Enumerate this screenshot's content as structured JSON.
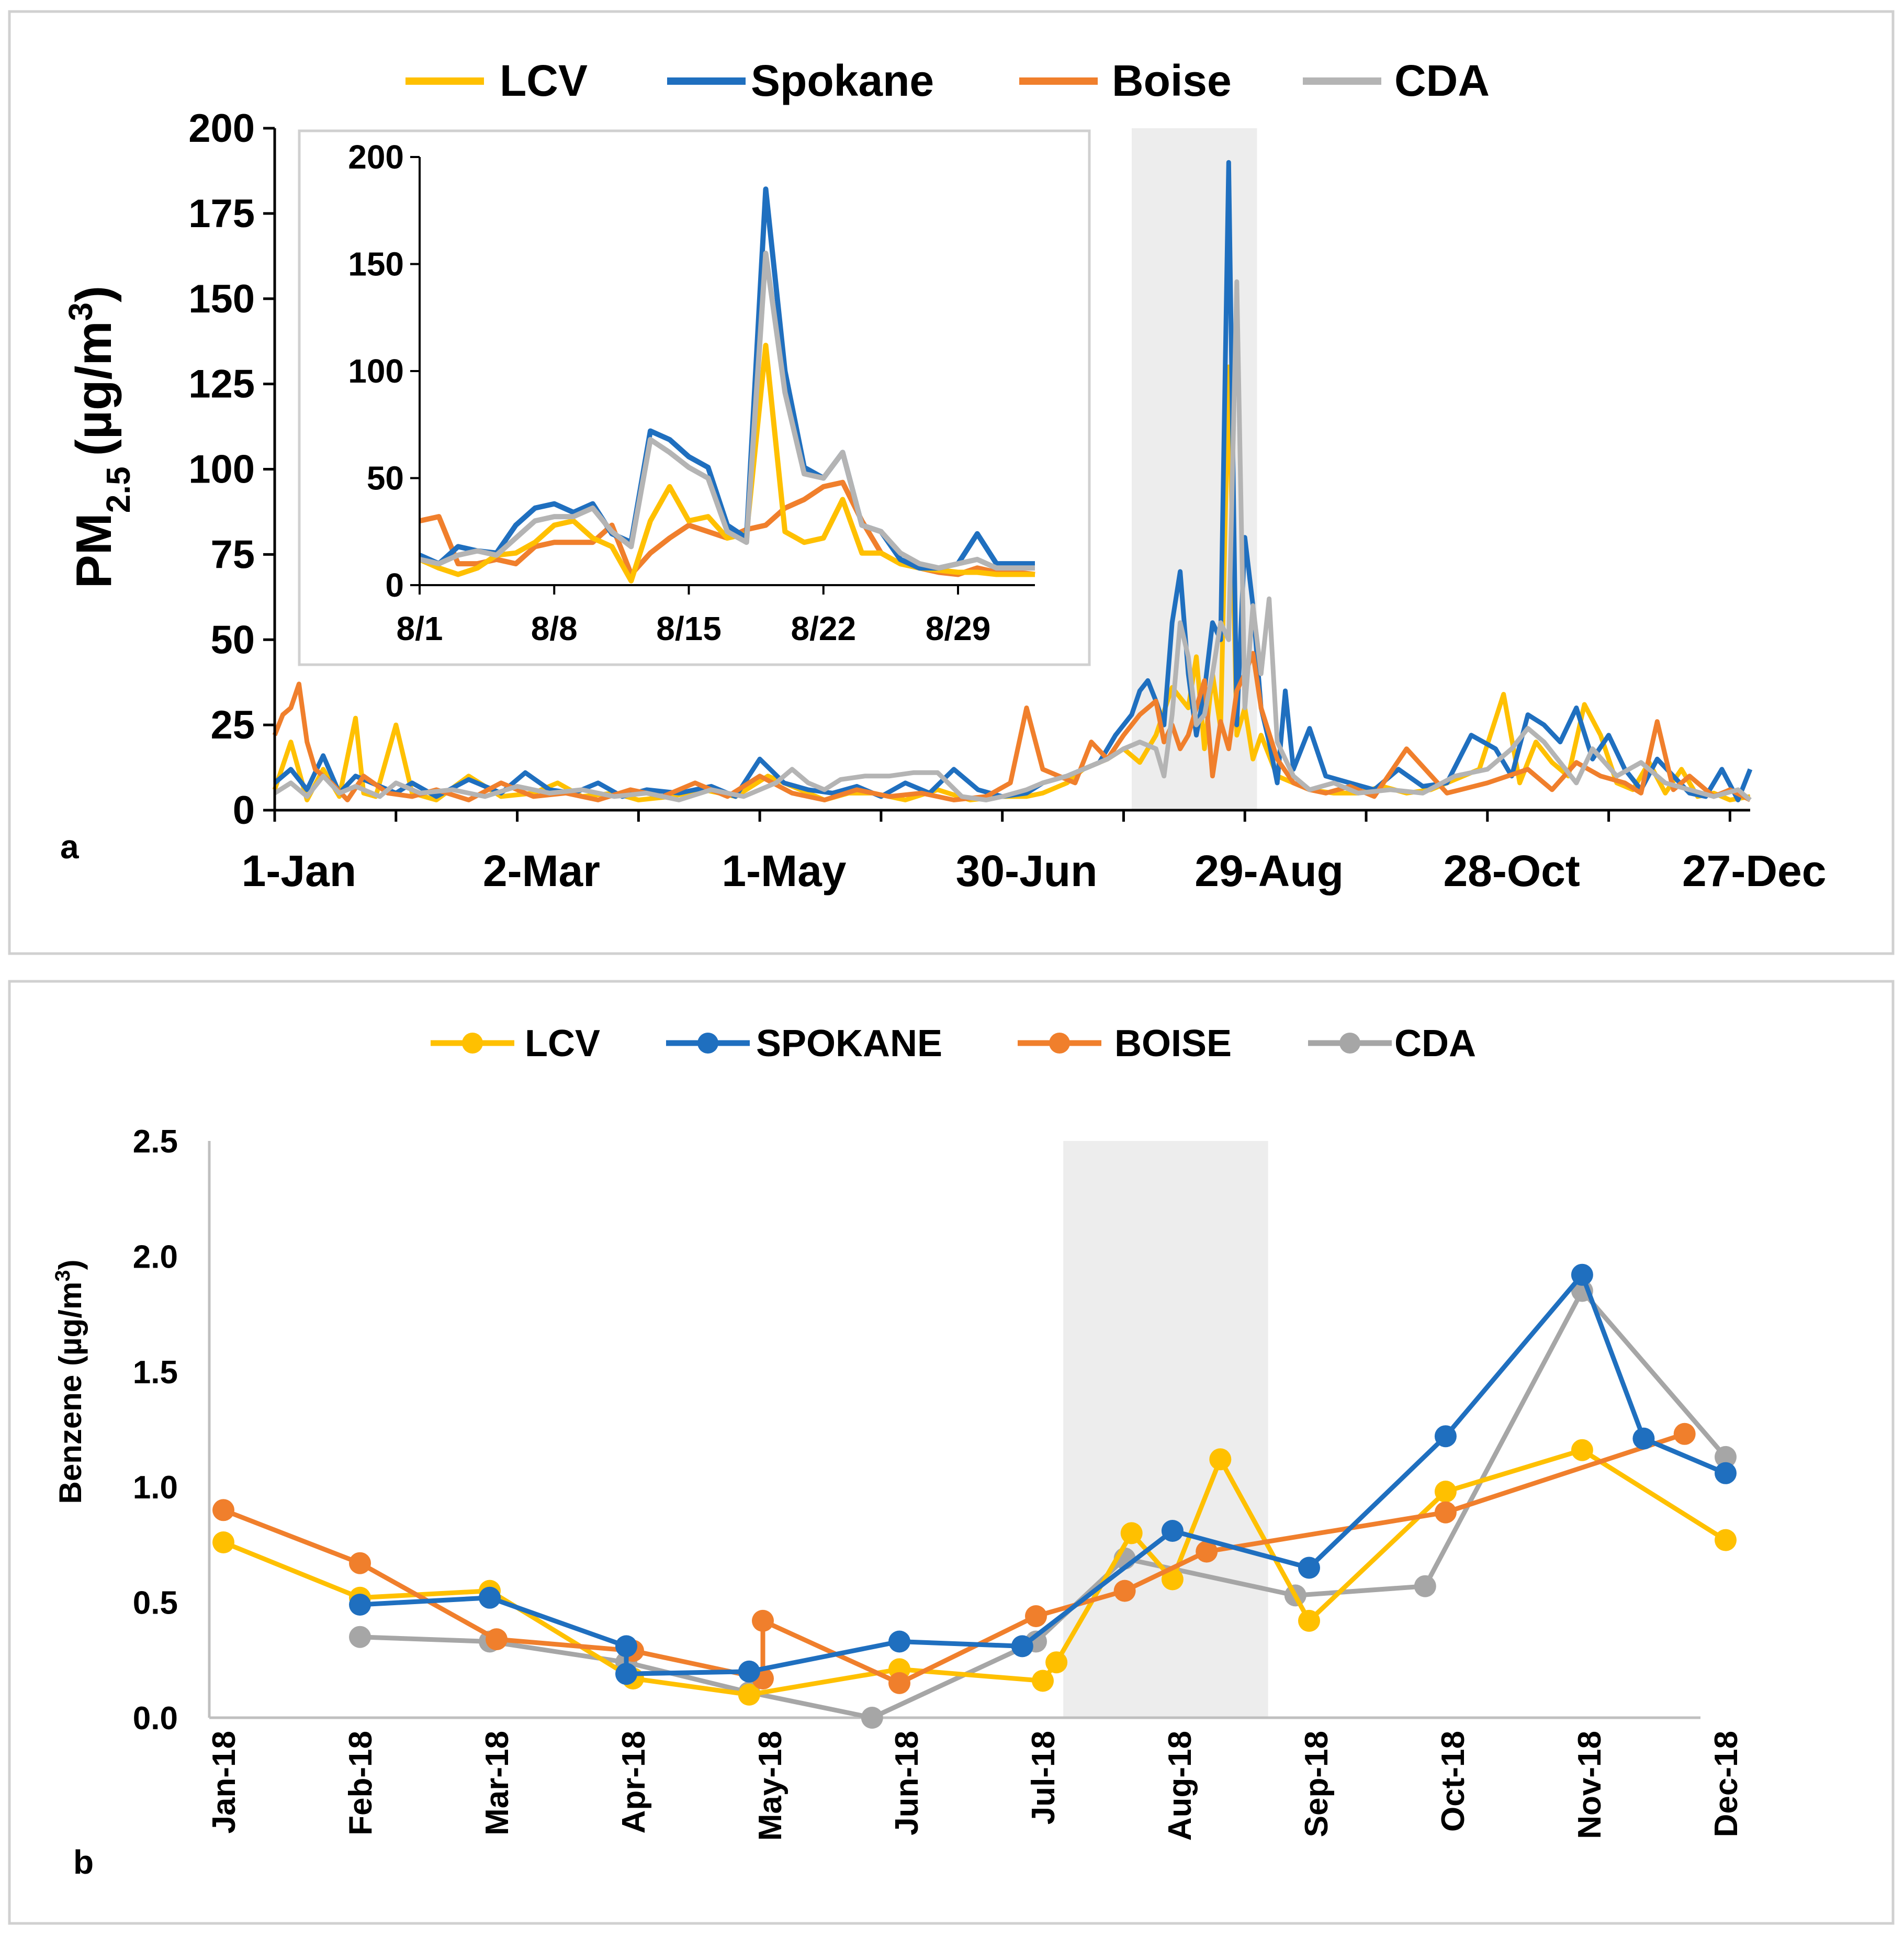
{
  "colors": {
    "lcv": "#FFC000",
    "spokane": "#1F6FBF",
    "boise": "#F07F2C",
    "cda": "#B4B4B4",
    "highlight": "#EDEDED",
    "frame": "#D0D0D0",
    "axis": "#000000"
  },
  "panel_a": {
    "label": "a",
    "ylabel_main": "PM",
    "ylabel_sub": "2.5",
    "ylabel_unit": "(µg/m",
    "ylabel_sup": "3",
    "ylabel_close": ")",
    "legend": [
      "LCV",
      "Spokane",
      "Boise",
      "CDA"
    ],
    "inset_ticks_y": [
      "0",
      "50",
      "100",
      "150",
      "200"
    ],
    "inset_ticks_x": [
      "8/1",
      "8/8",
      "8/15",
      "8/22",
      "8/29"
    ]
  },
  "panel_b": {
    "label": "b",
    "ylabel_main": "Benzene (µg/m",
    "ylabel_sup": "3",
    "ylabel_close": ")",
    "legend": [
      "LCV",
      "SPOKANE",
      "BOISE",
      "CDA"
    ]
  },
  "chart_data": [
    {
      "type": "line",
      "title": "",
      "xlabel": "",
      "ylabel": "PM2.5 (µg/m3)",
      "ylim": [
        0,
        200
      ],
      "yticks": [
        "0",
        "25",
        "50",
        "75",
        "100",
        "125",
        "150",
        "175",
        "200"
      ],
      "xlim_day": [
        0,
        365
      ],
      "x_tick_days": [
        6,
        66,
        126,
        186,
        246,
        306,
        366
      ],
      "xticks": [
        "1-Jan",
        "2-Mar",
        "1-May",
        "30-Jun",
        "29-Aug",
        "28-Oct",
        "27-Dec"
      ],
      "highlight_days": [
        212,
        243
      ],
      "series": [
        {
          "name": "LCV",
          "x": [
            0,
            4,
            8,
            12,
            16,
            20,
            22,
            25,
            30,
            34,
            40,
            48,
            56,
            64,
            70,
            76,
            84,
            90,
            98,
            106,
            114,
            122,
            130,
            136,
            142,
            148,
            156,
            164,
            172,
            180,
            186,
            190,
            196,
            200,
            206,
            210,
            214,
            218,
            222,
            226,
            228,
            230,
            232,
            234,
            236,
            238,
            240,
            242,
            244,
            248,
            252,
            256,
            262,
            268,
            274,
            280,
            286,
            292,
            298,
            304,
            308,
            312,
            316,
            320,
            324,
            328,
            332,
            336,
            340,
            344,
            348,
            352,
            356,
            360,
            365
          ],
          "y": [
            6,
            20,
            3,
            12,
            4,
            27,
            5,
            4,
            25,
            5,
            3,
            10,
            4,
            5,
            8,
            4,
            5,
            3,
            4,
            6,
            4,
            10,
            6,
            3,
            5,
            5,
            3,
            6,
            3,
            4,
            4,
            5,
            8,
            12,
            15,
            18,
            14,
            22,
            36,
            30,
            45,
            18,
            40,
            24,
            130,
            22,
            30,
            15,
            22,
            10,
            8,
            6,
            5,
            5,
            7,
            5,
            6,
            9,
            12,
            34,
            8,
            20,
            14,
            10,
            31,
            22,
            8,
            6,
            14,
            5,
            12,
            4,
            5,
            3,
            4
          ]
        },
        {
          "name": "Spokane",
          "x": [
            0,
            4,
            8,
            12,
            16,
            20,
            26,
            30,
            34,
            40,
            48,
            56,
            62,
            68,
            74,
            80,
            86,
            92,
            100,
            108,
            114,
            120,
            126,
            132,
            138,
            144,
            150,
            156,
            162,
            168,
            174,
            180,
            186,
            190,
            196,
            200,
            204,
            208,
            212,
            214,
            216,
            218,
            220,
            222,
            224,
            226,
            228,
            230,
            232,
            234,
            236,
            238,
            240,
            242,
            244,
            246,
            248,
            250,
            252,
            256,
            260,
            266,
            272,
            278,
            284,
            290,
            296,
            302,
            306,
            310,
            314,
            318,
            322,
            326,
            330,
            334,
            338,
            342,
            346,
            350,
            354,
            358,
            362,
            365
          ],
          "y": [
            8,
            12,
            6,
            16,
            5,
            10,
            7,
            5,
            8,
            4,
            9,
            5,
            11,
            6,
            5,
            8,
            4,
            6,
            5,
            7,
            4,
            15,
            8,
            6,
            5,
            7,
            4,
            8,
            5,
            12,
            6,
            4,
            5,
            8,
            10,
            12,
            14,
            22,
            28,
            35,
            38,
            32,
            25,
            55,
            70,
            40,
            22,
            35,
            55,
            50,
            190,
            25,
            80,
            60,
            30,
            20,
            8,
            35,
            12,
            24,
            10,
            8,
            6,
            12,
            7,
            8,
            22,
            18,
            10,
            28,
            25,
            20,
            30,
            15,
            22,
            12,
            6,
            15,
            10,
            5,
            4,
            12,
            3,
            12
          ]
        },
        {
          "name": "Boise",
          "x": [
            0,
            2,
            4,
            6,
            8,
            10,
            14,
            18,
            22,
            28,
            34,
            40,
            48,
            56,
            64,
            72,
            80,
            88,
            96,
            104,
            112,
            120,
            128,
            136,
            144,
            152,
            160,
            168,
            176,
            182,
            186,
            190,
            194,
            198,
            202,
            206,
            210,
            214,
            218,
            220,
            222,
            224,
            226,
            228,
            230,
            232,
            234,
            236,
            238,
            240,
            242,
            244,
            248,
            252,
            256,
            260,
            266,
            272,
            280,
            290,
            300,
            310,
            316,
            322,
            328,
            334,
            338,
            342,
            346,
            350,
            356,
            360,
            365
          ],
          "y": [
            22,
            28,
            30,
            37,
            20,
            12,
            8,
            3,
            10,
            5,
            4,
            6,
            3,
            8,
            4,
            5,
            3,
            6,
            4,
            8,
            4,
            10,
            5,
            3,
            6,
            4,
            5,
            3,
            4,
            8,
            30,
            12,
            10,
            8,
            20,
            15,
            22,
            28,
            32,
            20,
            25,
            18,
            22,
            30,
            38,
            10,
            26,
            18,
            35,
            40,
            46,
            30,
            15,
            8,
            6,
            5,
            7,
            4,
            18,
            5,
            8,
            12,
            6,
            14,
            10,
            8,
            5,
            26,
            6,
            10,
            4,
            6,
            3
          ]
        },
        {
          "name": "CDA",
          "x": [
            0,
            4,
            8,
            12,
            16,
            20,
            26,
            30,
            36,
            44,
            52,
            60,
            68,
            76,
            84,
            92,
            100,
            108,
            116,
            124,
            128,
            132,
            136,
            140,
            146,
            152,
            158,
            164,
            170,
            176,
            180,
            186,
            190,
            196,
            200,
            206,
            210,
            214,
            218,
            220,
            222,
            224,
            226,
            228,
            230,
            232,
            234,
            236,
            238,
            240,
            242,
            244,
            246,
            248,
            252,
            256,
            262,
            268,
            276,
            284,
            292,
            300,
            306,
            310,
            314,
            318,
            322,
            326,
            332,
            338,
            344,
            350,
            356,
            362,
            365
          ],
          "y": [
            5,
            8,
            4,
            10,
            5,
            7,
            4,
            8,
            5,
            6,
            4,
            7,
            5,
            6,
            4,
            5,
            3,
            6,
            4,
            8,
            12,
            8,
            6,
            9,
            10,
            10,
            11,
            11,
            4,
            3,
            4,
            6,
            8,
            10,
            12,
            15,
            18,
            20,
            18,
            10,
            28,
            55,
            45,
            25,
            28,
            40,
            55,
            50,
            155,
            30,
            60,
            40,
            62,
            20,
            10,
            6,
            8,
            5,
            6,
            5,
            10,
            12,
            18,
            24,
            20,
            14,
            8,
            18,
            10,
            14,
            8,
            6,
            4,
            6,
            3
          ]
        }
      ]
    },
    {
      "type": "line",
      "title": "inset",
      "xlabel": "",
      "ylabel": "",
      "ylim": [
        0,
        200
      ],
      "xlim": [
        1,
        33
      ],
      "yticks": [
        0,
        50,
        100,
        150,
        200
      ],
      "xticks": [
        "8/1",
        "8/8",
        "8/15",
        "8/22",
        "8/29"
      ],
      "xtick_values": [
        1,
        8,
        15,
        22,
        29
      ],
      "series": [
        {
          "name": "LCV",
          "x": [
            1,
            2,
            3,
            4,
            5,
            6,
            7,
            8,
            9,
            10,
            11,
            12,
            13,
            14,
            15,
            16,
            17,
            18,
            19,
            20,
            21,
            22,
            23,
            24,
            25,
            26,
            27,
            28,
            29,
            30,
            31,
            32,
            33
          ],
          "y": [
            12,
            8,
            5,
            8,
            14,
            15,
            20,
            28,
            30,
            22,
            18,
            2,
            30,
            46,
            30,
            32,
            22,
            24,
            112,
            25,
            20,
            22,
            40,
            15,
            15,
            10,
            8,
            7,
            6,
            6,
            5,
            5,
            5
          ]
        },
        {
          "name": "Spokane",
          "x": [
            1,
            2,
            3,
            4,
            5,
            6,
            7,
            8,
            9,
            10,
            11,
            12,
            13,
            14,
            15,
            16,
            17,
            18,
            19,
            20,
            21,
            22,
            23,
            24,
            25,
            26,
            27,
            28,
            29,
            30,
            31,
            32,
            33
          ],
          "y": [
            14,
            10,
            18,
            16,
            15,
            28,
            36,
            38,
            34,
            38,
            24,
            20,
            72,
            68,
            60,
            55,
            28,
            22,
            185,
            100,
            55,
            50,
            62,
            28,
            25,
            12,
            8,
            8,
            10,
            24,
            10,
            10,
            10
          ]
        },
        {
          "name": "Boise",
          "x": [
            1,
            2,
            3,
            4,
            5,
            6,
            7,
            8,
            9,
            10,
            11,
            12,
            13,
            14,
            15,
            16,
            17,
            18,
            19,
            20,
            21,
            22,
            23,
            24,
            25,
            26,
            27,
            28,
            29,
            30,
            31,
            32,
            33
          ],
          "y": [
            30,
            32,
            10,
            10,
            12,
            10,
            18,
            20,
            20,
            20,
            28,
            5,
            15,
            22,
            28,
            25,
            22,
            26,
            28,
            36,
            40,
            46,
            48,
            30,
            15,
            10,
            8,
            6,
            5,
            8,
            6,
            6,
            5
          ]
        },
        {
          "name": "CDA",
          "x": [
            1,
            2,
            3,
            4,
            5,
            6,
            7,
            8,
            9,
            10,
            11,
            12,
            13,
            14,
            15,
            16,
            17,
            18,
            19,
            20,
            21,
            22,
            23,
            24,
            25,
            26,
            27,
            28,
            29,
            30,
            31,
            32,
            33
          ],
          "y": [
            12,
            10,
            14,
            16,
            14,
            22,
            30,
            32,
            32,
            36,
            25,
            18,
            68,
            62,
            55,
            50,
            25,
            20,
            155,
            90,
            52,
            50,
            62,
            28,
            25,
            15,
            10,
            8,
            10,
            12,
            8,
            8,
            8
          ]
        }
      ]
    },
    {
      "type": "line",
      "title": "",
      "xlabel": "",
      "ylabel": "Benzene (µg/m3)",
      "ylim": [
        0,
        2.5
      ],
      "yticks": [
        "0.0",
        "0.5",
        "1.0",
        "1.5",
        "2.0",
        "2.5"
      ],
      "xticks": [
        "Jan-18",
        "Feb-18",
        "Mar-18",
        "Apr-18",
        "May-18",
        "Jun-18",
        "Jul-18",
        "Aug-18",
        "Sep-18",
        "Oct-18",
        "Nov-18",
        "Dec-18"
      ],
      "x_note": "x values are month offsets: 0 = Jan-18 tick, 11 = Dec-18 tick",
      "highlight_x": [
        6.15,
        7.65
      ],
      "series": [
        {
          "name": "LCV",
          "x": [
            0,
            1.0,
            1.95,
            3.0,
            3.85,
            4.95,
            6.0,
            6.1,
            6.65,
            6.95,
            7.3,
            7.95,
            8.95,
            9.95,
            11.0
          ],
          "y": [
            0.76,
            0.52,
            0.55,
            0.17,
            0.1,
            0.21,
            0.16,
            0.24,
            0.8,
            0.6,
            1.12,
            0.42,
            0.98,
            1.16,
            0.77
          ]
        },
        {
          "name": "SPOKANE",
          "x": [
            1.0,
            1.95,
            2.95,
            2.95,
            3.85,
            4.95,
            5.85,
            6.95,
            7.95,
            8.95,
            9.95,
            10.4,
            11.0
          ],
          "y": [
            0.49,
            0.52,
            0.31,
            0.19,
            0.2,
            0.33,
            0.31,
            0.81,
            0.65,
            1.22,
            1.92,
            1.21,
            1.06
          ]
        },
        {
          "name": "BOISE",
          "x": [
            0,
            1.0,
            2.0,
            3.0,
            3.95,
            3.95,
            4.95,
            5.95,
            6.6,
            7.2,
            8.95,
            10.7
          ],
          "y": [
            0.9,
            0.67,
            0.34,
            0.29,
            0.17,
            0.42,
            0.15,
            0.44,
            0.55,
            0.72,
            0.89,
            1.23
          ]
        },
        {
          "name": "CDA",
          "x": [
            1.0,
            1.95,
            2.95,
            3.85,
            4.75,
            5.95,
            6.6,
            7.85,
            8.8,
            9.95,
            11.0
          ],
          "y": [
            0.35,
            0.33,
            0.24,
            0.11,
            0.0,
            0.33,
            0.69,
            0.53,
            0.57,
            1.85,
            1.13
          ]
        }
      ]
    }
  ]
}
